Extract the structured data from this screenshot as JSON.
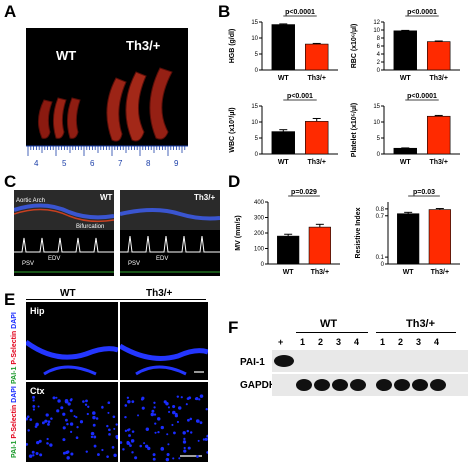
{
  "panels": {
    "A": {
      "letter": "A",
      "wt_label": "WT",
      "th3_label": "Th3/+",
      "ruler_numbers": [
        "4",
        "5",
        "6",
        "7",
        "8",
        "9"
      ]
    },
    "B": {
      "letter": "B"
    },
    "C": {
      "letter": "C",
      "wt_label": "WT",
      "th3_label": "Th3/+",
      "aortic_arch": "Aortic Arch",
      "bifurcation": "Bifurcation",
      "psv": "PSV",
      "edv": "EDV"
    },
    "D": {
      "letter": "D"
    },
    "E": {
      "letter": "E",
      "wt_label": "WT",
      "th3_label": "Th3/+",
      "hip": "Hip",
      "ctx": "Ctx",
      "stain_pai": "PAI-1",
      "stain_psel": "P-Selectin",
      "stain_dapi": "DAPI"
    },
    "F": {
      "letter": "F",
      "wt_label": "WT",
      "th3_label": "Th3/+",
      "plus": "+",
      "lanes": [
        "1",
        "2",
        "3",
        "4",
        "1",
        "2",
        "3",
        "4"
      ],
      "row1": "PAI-1",
      "row2": "GAPDH"
    }
  },
  "colors": {
    "wt_bar": "#000000",
    "th3_bar": "#ff2a00",
    "dapi": "#1a2cff"
  },
  "chart_data": [
    {
      "type": "bar",
      "categories": [
        "WT",
        "Th3/+"
      ],
      "values": [
        14.2,
        8.1
      ],
      "errors": [
        0.2,
        0.2
      ],
      "ylabel": "HGB (g/dl)",
      "ylim": [
        0,
        15
      ],
      "yticks": [
        0,
        5,
        10,
        15
      ],
      "pvalue": "p<0.0001"
    },
    {
      "type": "bar",
      "categories": [
        "WT",
        "Th3/+"
      ],
      "values": [
        9.8,
        7.1
      ],
      "errors": [
        0.1,
        0.15
      ],
      "ylabel": "RBC (x10⁶/µl)",
      "ylim": [
        0,
        12
      ],
      "yticks": [
        0,
        2,
        4,
        6,
        8,
        10,
        12
      ],
      "pvalue": "p<0.0001"
    },
    {
      "type": "bar",
      "categories": [
        "WT",
        "Th3/+"
      ],
      "values": [
        7,
        10.2
      ],
      "errors": [
        0.6,
        0.9
      ],
      "ylabel": "WBC (x10³/µl)",
      "ylim": [
        0,
        15
      ],
      "yticks": [
        0,
        5,
        10,
        15
      ],
      "pvalue": "p<0.001"
    },
    {
      "type": "bar",
      "categories": [
        "WT",
        "Th3/+"
      ],
      "values": [
        1.8,
        11.8
      ],
      "errors": [
        0.1,
        0.25
      ],
      "ylabel": "Platelet (x10⁵/µl)",
      "ylim": [
        0,
        15
      ],
      "yticks": [
        0,
        5,
        10,
        15
      ],
      "pvalue": "p<0.0001"
    },
    {
      "type": "bar",
      "categories": [
        "WT",
        "Th3/+"
      ],
      "values": [
        180,
        238
      ],
      "errors": [
        12,
        18
      ],
      "ylabel": "MV (mm/s)",
      "ylim": [
        0,
        400
      ],
      "yticks": [
        0,
        100,
        200,
        300,
        400
      ],
      "pvalue": "p=0.029"
    },
    {
      "type": "bar",
      "categories": [
        "WT",
        "Th3/+"
      ],
      "values": [
        0.73,
        0.79
      ],
      "errors": [
        0.02,
        0.015
      ],
      "ylabel": "Resistive Index",
      "ylim": [
        0,
        0.9
      ],
      "yticks": [
        0,
        0.1,
        0.7,
        0.8
      ],
      "pvalue": "p=0.03"
    }
  ]
}
